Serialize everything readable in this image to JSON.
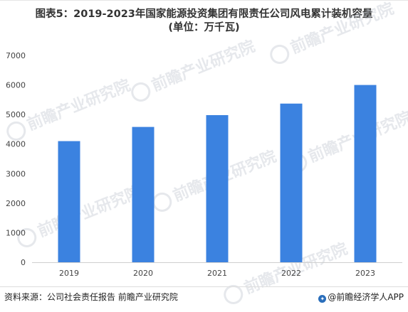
{
  "header": {
    "title_line1": "图表5：2019-2023年国家能源投资集团有限责任公司风电累计装机容量",
    "title_line2": "(单位：万千瓦)"
  },
  "chart_data": {
    "type": "bar",
    "categories": [
      "2019",
      "2020",
      "2021",
      "2022",
      "2023"
    ],
    "values": [
      4100,
      4580,
      4980,
      5370,
      6000
    ],
    "title": "图表5：2019-2023年国家能源投资集团有限责任公司风电累计装机容量 (单位：万千瓦)",
    "xlabel": "",
    "ylabel": "",
    "ylim": [
      0,
      7000
    ],
    "yticks": [
      "0",
      "1000",
      "2000",
      "3000",
      "4000",
      "5000",
      "6000",
      "7000"
    ],
    "grid": false,
    "legend": "none",
    "bar_color": "#3b82e0"
  },
  "footer": {
    "source": "资料来源：公司社会责任报告 前瞻产业研究院",
    "brand": "@前瞻经济学人APP"
  },
  "watermark": {
    "text": "前瞻产业研究院",
    "color": "#c8ced6"
  }
}
